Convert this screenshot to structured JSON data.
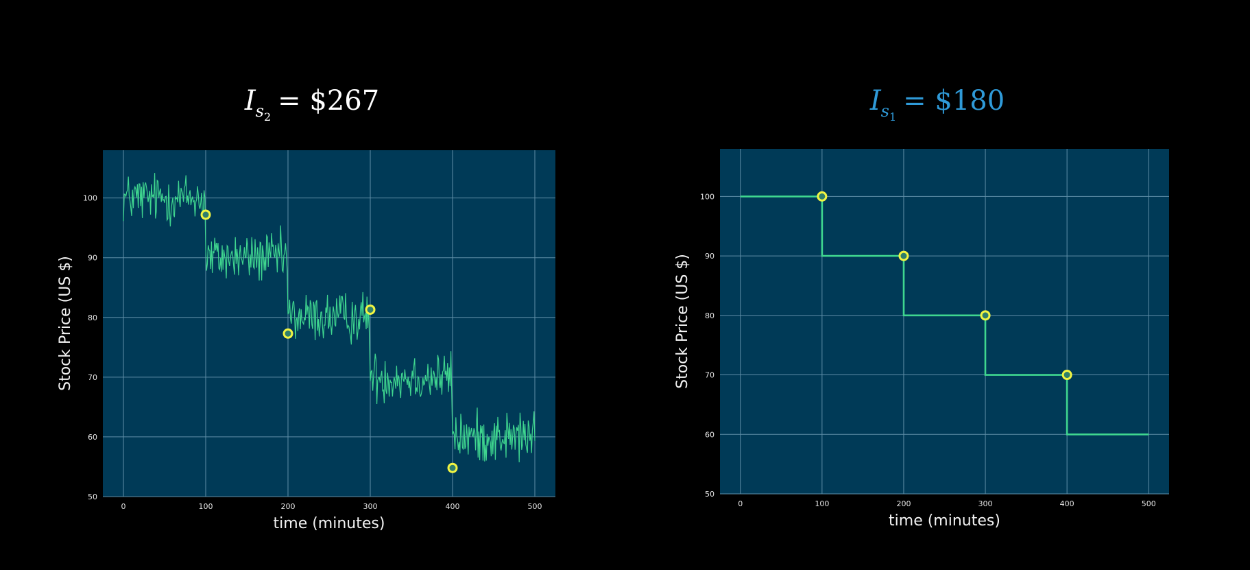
{
  "colors": {
    "background": "#000000",
    "plot_bg": "#003a57",
    "grid": "#5f8ea7",
    "line": "#3fd68f",
    "marker_face": "#2f7f6c",
    "marker_edge": "#f2f542",
    "title_left": "#ffffff",
    "title_right": "#2f9ad8"
  },
  "chart_data": [
    {
      "type": "line",
      "title": {
        "symbol": "I",
        "subscript_letter": "s",
        "subscript_index": "2",
        "value_text": "= $267"
      },
      "xlabel": "time (minutes)",
      "ylabel": "Stock Price (US $)",
      "xlim": [
        -25,
        525
      ],
      "ylim": [
        50,
        108
      ],
      "xticks": [
        0,
        100,
        200,
        300,
        400,
        500
      ],
      "yticks": [
        50,
        60,
        70,
        80,
        90,
        100
      ],
      "grid": true,
      "noise": true,
      "series": [
        {
          "x": [
            0,
            100,
            100,
            200,
            200,
            300,
            300,
            400,
            400,
            500
          ],
          "y": [
            100,
            100,
            90,
            90,
            80,
            80,
            70,
            70,
            60,
            60
          ]
        }
      ],
      "markers": {
        "x": [
          100,
          200,
          300,
          400
        ],
        "y": [
          97.2,
          77.3,
          81.3,
          54.8
        ]
      }
    },
    {
      "type": "line",
      "title": {
        "symbol": "I",
        "subscript_letter": "s",
        "subscript_index": "1",
        "value_text": "= $180"
      },
      "xlabel": "time (minutes)",
      "ylabel": "Stock Price (US $)",
      "xlim": [
        -25,
        525
      ],
      "ylim": [
        50,
        108
      ],
      "xticks": [
        0,
        100,
        200,
        300,
        400,
        500
      ],
      "yticks": [
        50,
        60,
        70,
        80,
        90,
        100
      ],
      "grid": true,
      "noise": false,
      "series": [
        {
          "x": [
            0,
            100,
            100,
            200,
            200,
            300,
            300,
            400,
            400,
            500
          ],
          "y": [
            100,
            100,
            90,
            90,
            80,
            80,
            70,
            70,
            60,
            60
          ]
        }
      ],
      "markers": {
        "x": [
          100,
          200,
          300,
          400
        ],
        "y": [
          100,
          90,
          80,
          70
        ]
      }
    }
  ]
}
